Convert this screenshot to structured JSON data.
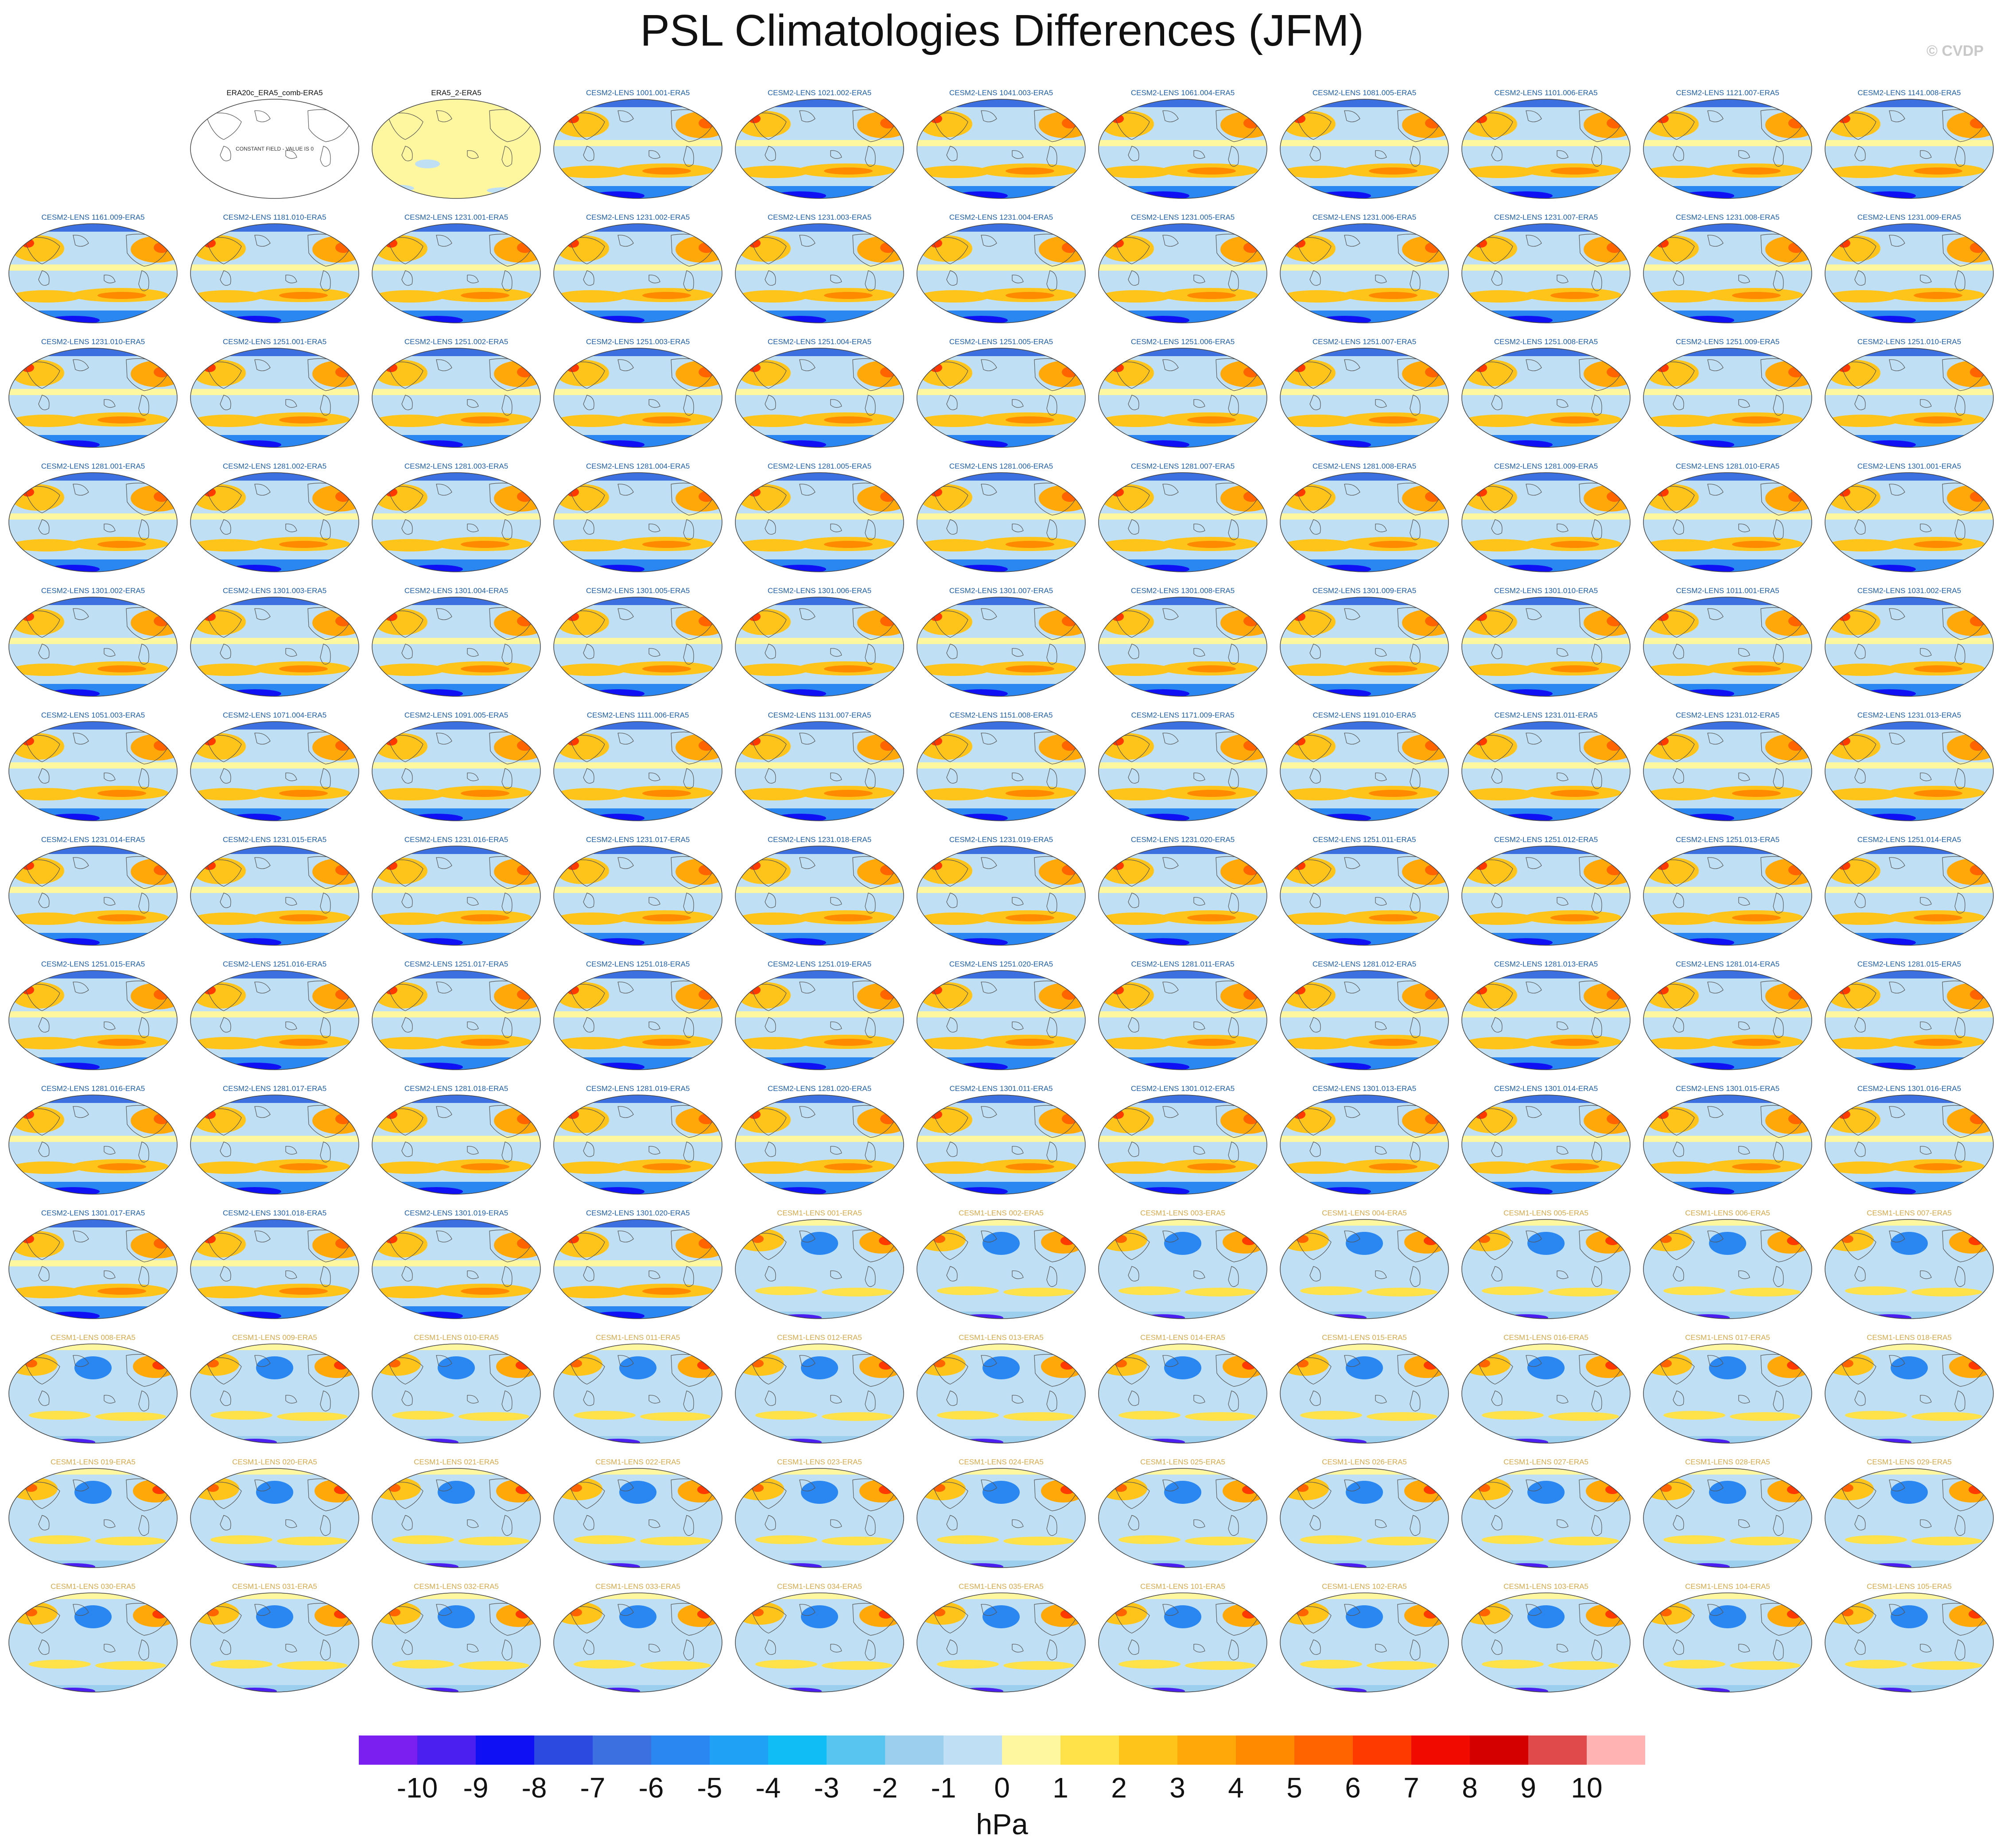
{
  "title": "PSL Climatologies Differences (JFM)",
  "credit": "© CVDP",
  "panels": [
    {
      "label": "",
      "kind": "blank"
    },
    {
      "label": "ERA20c_ERA5_comb-ERA5",
      "kind": "constant",
      "note": "CONSTANT FIELD - VALUE IS 0"
    },
    {
      "label": "ERA5_2-ERA5",
      "kind": "obs"
    },
    {
      "label": "CESM2-LENS 1001.001-ERA5",
      "kind": "c2"
    },
    {
      "label": "CESM2-LENS 1021.002-ERA5",
      "kind": "c2"
    },
    {
      "label": "CESM2-LENS 1041.003-ERA5",
      "kind": "c2"
    },
    {
      "label": "CESM2-LENS 1061.004-ERA5",
      "kind": "c2"
    },
    {
      "label": "CESM2-LENS 1081.005-ERA5",
      "kind": "c2"
    },
    {
      "label": "CESM2-LENS 1101.006-ERA5",
      "kind": "c2"
    },
    {
      "label": "CESM2-LENS 1121.007-ERA5",
      "kind": "c2"
    },
    {
      "label": "CESM2-LENS 1141.008-ERA5",
      "kind": "c2"
    },
    {
      "label": "CESM2-LENS 1161.009-ERA5",
      "kind": "c2"
    },
    {
      "label": "CESM2-LENS 1181.010-ERA5",
      "kind": "c2"
    },
    {
      "label": "CESM2-LENS 1231.001-ERA5",
      "kind": "c2"
    },
    {
      "label": "CESM2-LENS 1231.002-ERA5",
      "kind": "c2"
    },
    {
      "label": "CESM2-LENS 1231.003-ERA5",
      "kind": "c2"
    },
    {
      "label": "CESM2-LENS 1231.004-ERA5",
      "kind": "c2"
    },
    {
      "label": "CESM2-LENS 1231.005-ERA5",
      "kind": "c2"
    },
    {
      "label": "CESM2-LENS 1231.006-ERA5",
      "kind": "c2"
    },
    {
      "label": "CESM2-LENS 1231.007-ERA5",
      "kind": "c2"
    },
    {
      "label": "CESM2-LENS 1231.008-ERA5",
      "kind": "c2"
    },
    {
      "label": "CESM2-LENS 1231.009-ERA5",
      "kind": "c2"
    },
    {
      "label": "CESM2-LENS 1231.010-ERA5",
      "kind": "c2"
    },
    {
      "label": "CESM2-LENS 1251.001-ERA5",
      "kind": "c2"
    },
    {
      "label": "CESM2-LENS 1251.002-ERA5",
      "kind": "c2"
    },
    {
      "label": "CESM2-LENS 1251.003-ERA5",
      "kind": "c2"
    },
    {
      "label": "CESM2-LENS 1251.004-ERA5",
      "kind": "c2"
    },
    {
      "label": "CESM2-LENS 1251.005-ERA5",
      "kind": "c2"
    },
    {
      "label": "CESM2-LENS 1251.006-ERA5",
      "kind": "c2"
    },
    {
      "label": "CESM2-LENS 1251.007-ERA5",
      "kind": "c2"
    },
    {
      "label": "CESM2-LENS 1251.008-ERA5",
      "kind": "c2"
    },
    {
      "label": "CESM2-LENS 1251.009-ERA5",
      "kind": "c2"
    },
    {
      "label": "CESM2-LENS 1251.010-ERA5",
      "kind": "c2"
    },
    {
      "label": "CESM2-LENS 1281.001-ERA5",
      "kind": "c2"
    },
    {
      "label": "CESM2-LENS 1281.002-ERA5",
      "kind": "c2"
    },
    {
      "label": "CESM2-LENS 1281.003-ERA5",
      "kind": "c2"
    },
    {
      "label": "CESM2-LENS 1281.004-ERA5",
      "kind": "c2"
    },
    {
      "label": "CESM2-LENS 1281.005-ERA5",
      "kind": "c2"
    },
    {
      "label": "CESM2-LENS 1281.006-ERA5",
      "kind": "c2"
    },
    {
      "label": "CESM2-LENS 1281.007-ERA5",
      "kind": "c2"
    },
    {
      "label": "CESM2-LENS 1281.008-ERA5",
      "kind": "c2"
    },
    {
      "label": "CESM2-LENS 1281.009-ERA5",
      "kind": "c2"
    },
    {
      "label": "CESM2-LENS 1281.010-ERA5",
      "kind": "c2"
    },
    {
      "label": "CESM2-LENS 1301.001-ERA5",
      "kind": "c2"
    },
    {
      "label": "CESM2-LENS 1301.002-ERA5",
      "kind": "c2"
    },
    {
      "label": "CESM2-LENS 1301.003-ERA5",
      "kind": "c2"
    },
    {
      "label": "CESM2-LENS 1301.004-ERA5",
      "kind": "c2"
    },
    {
      "label": "CESM2-LENS 1301.005-ERA5",
      "kind": "c2"
    },
    {
      "label": "CESM2-LENS 1301.006-ERA5",
      "kind": "c2"
    },
    {
      "label": "CESM2-LENS 1301.007-ERA5",
      "kind": "c2"
    },
    {
      "label": "CESM2-LENS 1301.008-ERA5",
      "kind": "c2"
    },
    {
      "label": "CESM2-LENS 1301.009-ERA5",
      "kind": "c2"
    },
    {
      "label": "CESM2-LENS 1301.010-ERA5",
      "kind": "c2"
    },
    {
      "label": "CESM2-LENS 1011.001-ERA5",
      "kind": "c2"
    },
    {
      "label": "CESM2-LENS 1031.002-ERA5",
      "kind": "c2"
    },
    {
      "label": "CESM2-LENS 1051.003-ERA5",
      "kind": "c2"
    },
    {
      "label": "CESM2-LENS 1071.004-ERA5",
      "kind": "c2"
    },
    {
      "label": "CESM2-LENS 1091.005-ERA5",
      "kind": "c2"
    },
    {
      "label": "CESM2-LENS 1111.006-ERA5",
      "kind": "c2"
    },
    {
      "label": "CESM2-LENS 1131.007-ERA5",
      "kind": "c2"
    },
    {
      "label": "CESM2-LENS 1151.008-ERA5",
      "kind": "c2"
    },
    {
      "label": "CESM2-LENS 1171.009-ERA5",
      "kind": "c2"
    },
    {
      "label": "CESM2-LENS 1191.010-ERA5",
      "kind": "c2"
    },
    {
      "label": "CESM2-LENS 1231.011-ERA5",
      "kind": "c2"
    },
    {
      "label": "CESM2-LENS 1231.012-ERA5",
      "kind": "c2"
    },
    {
      "label": "CESM2-LENS 1231.013-ERA5",
      "kind": "c2"
    },
    {
      "label": "CESM2-LENS 1231.014-ERA5",
      "kind": "c2"
    },
    {
      "label": "CESM2-LENS 1231.015-ERA5",
      "kind": "c2"
    },
    {
      "label": "CESM2-LENS 1231.016-ERA5",
      "kind": "c2"
    },
    {
      "label": "CESM2-LENS 1231.017-ERA5",
      "kind": "c2"
    },
    {
      "label": "CESM2-LENS 1231.018-ERA5",
      "kind": "c2"
    },
    {
      "label": "CESM2-LENS 1231.019-ERA5",
      "kind": "c2"
    },
    {
      "label": "CESM2-LENS 1231.020-ERA5",
      "kind": "c2"
    },
    {
      "label": "CESM2-LENS 1251.011-ERA5",
      "kind": "c2"
    },
    {
      "label": "CESM2-LENS 1251.012-ERA5",
      "kind": "c2"
    },
    {
      "label": "CESM2-LENS 1251.013-ERA5",
      "kind": "c2"
    },
    {
      "label": "CESM2-LENS 1251.014-ERA5",
      "kind": "c2"
    },
    {
      "label": "CESM2-LENS 1251.015-ERA5",
      "kind": "c2"
    },
    {
      "label": "CESM2-LENS 1251.016-ERA5",
      "kind": "c2"
    },
    {
      "label": "CESM2-LENS 1251.017-ERA5",
      "kind": "c2"
    },
    {
      "label": "CESM2-LENS 1251.018-ERA5",
      "kind": "c2"
    },
    {
      "label": "CESM2-LENS 1251.019-ERA5",
      "kind": "c2"
    },
    {
      "label": "CESM2-LENS 1251.020-ERA5",
      "kind": "c2"
    },
    {
      "label": "CESM2-LENS 1281.011-ERA5",
      "kind": "c2"
    },
    {
      "label": "CESM2-LENS 1281.012-ERA5",
      "kind": "c2"
    },
    {
      "label": "CESM2-LENS 1281.013-ERA5",
      "kind": "c2"
    },
    {
      "label": "CESM2-LENS 1281.014-ERA5",
      "kind": "c2"
    },
    {
      "label": "CESM2-LENS 1281.015-ERA5",
      "kind": "c2"
    },
    {
      "label": "CESM2-LENS 1281.016-ERA5",
      "kind": "c2"
    },
    {
      "label": "CESM2-LENS 1281.017-ERA5",
      "kind": "c2"
    },
    {
      "label": "CESM2-LENS 1281.018-ERA5",
      "kind": "c2"
    },
    {
      "label": "CESM2-LENS 1281.019-ERA5",
      "kind": "c2"
    },
    {
      "label": "CESM2-LENS 1281.020-ERA5",
      "kind": "c2"
    },
    {
      "label": "CESM2-LENS 1301.011-ERA5",
      "kind": "c2"
    },
    {
      "label": "CESM2-LENS 1301.012-ERA5",
      "kind": "c2"
    },
    {
      "label": "CESM2-LENS 1301.013-ERA5",
      "kind": "c2"
    },
    {
      "label": "CESM2-LENS 1301.014-ERA5",
      "kind": "c2"
    },
    {
      "label": "CESM2-LENS 1301.015-ERA5",
      "kind": "c2"
    },
    {
      "label": "CESM2-LENS 1301.016-ERA5",
      "kind": "c2"
    },
    {
      "label": "CESM2-LENS 1301.017-ERA5",
      "kind": "c2"
    },
    {
      "label": "CESM2-LENS 1301.018-ERA5",
      "kind": "c2"
    },
    {
      "label": "CESM2-LENS 1301.019-ERA5",
      "kind": "c2"
    },
    {
      "label": "CESM2-LENS 1301.020-ERA5",
      "kind": "c2"
    },
    {
      "label": "CESM1-LENS 001-ERA5",
      "kind": "c1"
    },
    {
      "label": "CESM1-LENS 002-ERA5",
      "kind": "c1"
    },
    {
      "label": "CESM1-LENS 003-ERA5",
      "kind": "c1"
    },
    {
      "label": "CESM1-LENS 004-ERA5",
      "kind": "c1"
    },
    {
      "label": "CESM1-LENS 005-ERA5",
      "kind": "c1"
    },
    {
      "label": "CESM1-LENS 006-ERA5",
      "kind": "c1"
    },
    {
      "label": "CESM1-LENS 007-ERA5",
      "kind": "c1"
    },
    {
      "label": "CESM1-LENS 008-ERA5",
      "kind": "c1"
    },
    {
      "label": "CESM1-LENS 009-ERA5",
      "kind": "c1"
    },
    {
      "label": "CESM1-LENS 010-ERA5",
      "kind": "c1"
    },
    {
      "label": "CESM1-LENS 011-ERA5",
      "kind": "c1"
    },
    {
      "label": "CESM1-LENS 012-ERA5",
      "kind": "c1"
    },
    {
      "label": "CESM1-LENS 013-ERA5",
      "kind": "c1"
    },
    {
      "label": "CESM1-LENS 014-ERA5",
      "kind": "c1"
    },
    {
      "label": "CESM1-LENS 015-ERA5",
      "kind": "c1"
    },
    {
      "label": "CESM1-LENS 016-ERA5",
      "kind": "c1"
    },
    {
      "label": "CESM1-LENS 017-ERA5",
      "kind": "c1"
    },
    {
      "label": "CESM1-LENS 018-ERA5",
      "kind": "c1"
    },
    {
      "label": "CESM1-LENS 019-ERA5",
      "kind": "c1"
    },
    {
      "label": "CESM1-LENS 020-ERA5",
      "kind": "c1"
    },
    {
      "label": "CESM1-LENS 021-ERA5",
      "kind": "c1"
    },
    {
      "label": "CESM1-LENS 022-ERA5",
      "kind": "c1"
    },
    {
      "label": "CESM1-LENS 023-ERA5",
      "kind": "c1"
    },
    {
      "label": "CESM1-LENS 024-ERA5",
      "kind": "c1"
    },
    {
      "label": "CESM1-LENS 025-ERA5",
      "kind": "c1"
    },
    {
      "label": "CESM1-LENS 026-ERA5",
      "kind": "c1"
    },
    {
      "label": "CESM1-LENS 027-ERA5",
      "kind": "c1"
    },
    {
      "label": "CESM1-LENS 028-ERA5",
      "kind": "c1"
    },
    {
      "label": "CESM1-LENS 029-ERA5",
      "kind": "c1"
    },
    {
      "label": "CESM1-LENS 030-ERA5",
      "kind": "c1"
    },
    {
      "label": "CESM1-LENS 031-ERA5",
      "kind": "c1"
    },
    {
      "label": "CESM1-LENS 032-ERA5",
      "kind": "c1"
    },
    {
      "label": "CESM1-LENS 033-ERA5",
      "kind": "c1"
    },
    {
      "label": "CESM1-LENS 034-ERA5",
      "kind": "c1"
    },
    {
      "label": "CESM1-LENS 035-ERA5",
      "kind": "c1"
    },
    {
      "label": "CESM1-LENS 101-ERA5",
      "kind": "c1"
    },
    {
      "label": "CESM1-LENS 102-ERA5",
      "kind": "c1"
    },
    {
      "label": "CESM1-LENS 103-ERA5",
      "kind": "c1"
    },
    {
      "label": "CESM1-LENS 104-ERA5",
      "kind": "c1"
    },
    {
      "label": "CESM1-LENS 105-ERA5",
      "kind": "c1"
    }
  ],
  "colorbar": {
    "unit": "hPa",
    "colors": [
      "#7a1ff0",
      "#4a1ff0",
      "#1010f5",
      "#2c4ae0",
      "#3c6fe0",
      "#2a86f0",
      "#1fa2f5",
      "#10bdf5",
      "#58c4f0",
      "#9ccfee",
      "#bfe0f4",
      "#fff7a0",
      "#ffe14a",
      "#ffc41a",
      "#ffa80a",
      "#ff8a00",
      "#ff6400",
      "#ff3a00",
      "#f00a00",
      "#d40000",
      "#e04a4a",
      "#ffb3b3"
    ],
    "tick_labels": [
      "-10",
      "-9",
      "-8",
      "-7",
      "-6",
      "-5",
      "-4",
      "-3",
      "-2",
      "-1",
      "0",
      "1",
      "2",
      "3",
      "4",
      "5",
      "6",
      "7",
      "8",
      "9",
      "10"
    ]
  }
}
